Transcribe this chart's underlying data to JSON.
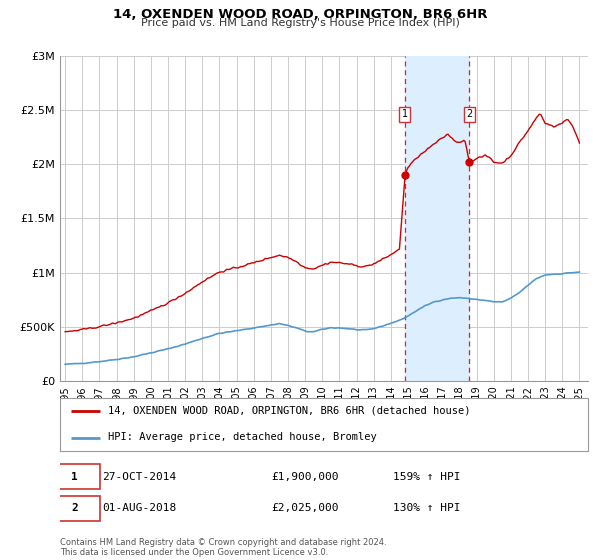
{
  "title": "14, OXENDEN WOOD ROAD, ORPINGTON, BR6 6HR",
  "subtitle": "Price paid vs. HM Land Registry's House Price Index (HPI)",
  "legend_line1": "14, OXENDEN WOOD ROAD, ORPINGTON, BR6 6HR (detached house)",
  "legend_line2": "HPI: Average price, detached house, Bromley",
  "footnote": "Contains HM Land Registry data © Crown copyright and database right 2024.\nThis data is licensed under the Open Government Licence v3.0.",
  "sale1_date": "27-OCT-2014",
  "sale1_price": "£1,900,000",
  "sale1_hpi": "159% ↑ HPI",
  "sale2_date": "01-AUG-2018",
  "sale2_price": "£2,025,000",
  "sale2_hpi": "130% ↑ HPI",
  "sale1_x": 2014.82,
  "sale1_y": 1900000,
  "sale2_x": 2018.58,
  "sale2_y": 2025000,
  "vline1_x": 2014.82,
  "vline2_x": 2018.58,
  "shade_x1": 2014.82,
  "shade_x2": 2018.58,
  "ylim": [
    0,
    3000000
  ],
  "xlim_start": 1994.7,
  "xlim_end": 2025.5,
  "hpi_color": "#5599cc",
  "price_color": "#cc0000",
  "shade_color": "#ddeeff",
  "vline_color": "#dd2222",
  "grid_color": "#cccccc",
  "background_color": "#ffffff",
  "xtick_years": [
    1995,
    1996,
    1997,
    1998,
    1999,
    2000,
    2001,
    2002,
    2003,
    2004,
    2005,
    2006,
    2007,
    2008,
    2009,
    2010,
    2011,
    2012,
    2013,
    2014,
    2015,
    2016,
    2017,
    2018,
    2019,
    2020,
    2021,
    2022,
    2023,
    2024,
    2025
  ]
}
